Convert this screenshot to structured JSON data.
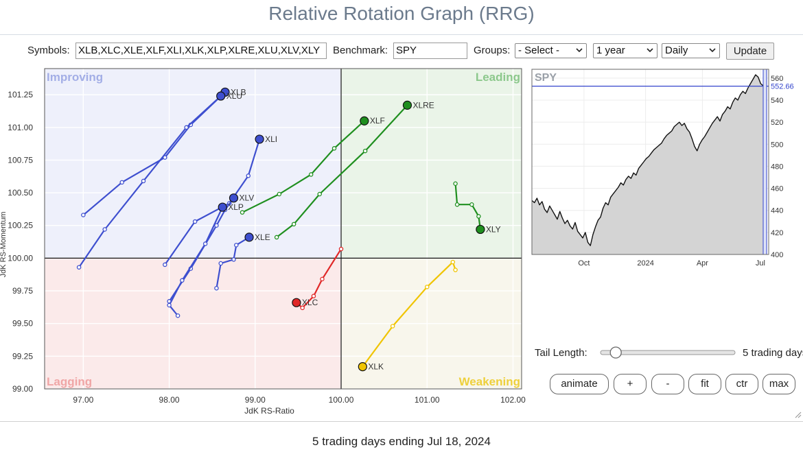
{
  "title": "Relative Rotation Graph (RRG)",
  "controls": {
    "symbols_label": "Symbols:",
    "symbols_value": "XLB,XLC,XLE,XLF,XLI,XLK,XLP,XLRE,XLU,XLV,XLY",
    "benchmark_label": "Benchmark:",
    "benchmark_value": "SPY",
    "groups_label": "Groups:",
    "groups_value": "- Select -",
    "period_value": "1 year",
    "frequency_value": "Daily",
    "update_label": "Update"
  },
  "tail": {
    "label": "Tail Length:",
    "value_text": "5 trading days",
    "slider_value": 5,
    "slider_max": 60
  },
  "buttons": {
    "animate": "animate",
    "plus": "+",
    "minus": "-",
    "fit": "fit",
    "ctr": "ctr",
    "max": "max"
  },
  "footer": "5 trading days ending Jul 18, 2024",
  "chart_data": [
    {
      "type": "scatter",
      "xlabel": "JdK RS-Ratio",
      "ylabel": "JdK RS-Momentum",
      "xlim": [
        96.55,
        102.1
      ],
      "ylim": [
        99.0,
        101.45
      ],
      "x_ticks": [
        "97.00",
        "98.00",
        "99.00",
        "100.00",
        "101.00",
        "102.00"
      ],
      "x_tick_values": [
        97,
        98,
        99,
        100,
        101,
        102
      ],
      "y_ticks": [
        "99.00",
        "99.25",
        "99.50",
        "99.75",
        "100.00",
        "100.25",
        "100.50",
        "100.75",
        "101.00",
        "101.25"
      ],
      "y_tick_values": [
        99,
        99.25,
        99.5,
        99.75,
        100,
        100.25,
        100.5,
        100.75,
        101,
        101.25
      ],
      "quadrants": [
        {
          "name": "Improving",
          "color": "#eef0fb",
          "label_color": "#a3aee6",
          "position": "top-left"
        },
        {
          "name": "Leading",
          "color": "#eaf4e8",
          "label_color": "#8cc88c",
          "position": "top-right"
        },
        {
          "name": "Lagging",
          "color": "#fbeaea",
          "label_color": "#f0a6a6",
          "position": "bottom-left"
        },
        {
          "name": "Weakening",
          "color": "#f8f6ec",
          "label_color": "#eed03c",
          "position": "bottom-right"
        }
      ],
      "series": [
        {
          "name": "XLB",
          "color": "#3e4fcf",
          "points": [
            [
              97.0,
              100.33
            ],
            [
              97.45,
              100.58
            ],
            [
              97.95,
              100.77
            ],
            [
              98.25,
              101.02
            ],
            [
              98.65,
              101.27
            ]
          ]
        },
        {
          "name": "XLU",
          "color": "#3e4fcf",
          "points": [
            [
              96.95,
              99.93
            ],
            [
              97.25,
              100.22
            ],
            [
              97.7,
              100.59
            ],
            [
              98.2,
              101.0
            ],
            [
              98.6,
              101.24
            ]
          ]
        },
        {
          "name": "XLI",
          "color": "#3e4fcf",
          "points": [
            [
              97.95,
              99.95
            ],
            [
              98.3,
              100.28
            ],
            [
              98.7,
              100.42
            ],
            [
              98.92,
              100.63
            ],
            [
              99.05,
              100.91
            ]
          ]
        },
        {
          "name": "XLV",
          "color": "#3e4fcf",
          "points": [
            [
              98.0,
              99.67
            ],
            [
              98.25,
              99.92
            ],
            [
              98.55,
              100.25
            ],
            [
              98.65,
              100.37
            ],
            [
              98.75,
              100.46
            ]
          ]
        },
        {
          "name": "XLP",
          "color": "#3e4fcf",
          "points": [
            [
              98.1,
              99.56
            ],
            [
              98.0,
              99.64
            ],
            [
              98.15,
              99.83
            ],
            [
              98.42,
              100.11
            ],
            [
              98.62,
              100.39
            ]
          ]
        },
        {
          "name": "XLE",
          "color": "#3e4fcf",
          "points": [
            [
              98.55,
              99.77
            ],
            [
              98.6,
              99.96
            ],
            [
              98.75,
              99.99
            ],
            [
              98.78,
              100.1
            ],
            [
              98.93,
              100.16
            ]
          ]
        },
        {
          "name": "XLRE",
          "color": "#1f8f1f",
          "points": [
            [
              99.25,
              100.16
            ],
            [
              99.45,
              100.26
            ],
            [
              99.75,
              100.49
            ],
            [
              100.28,
              100.82
            ],
            [
              100.77,
              101.17
            ]
          ]
        },
        {
          "name": "XLF",
          "color": "#1f8f1f",
          "points": [
            [
              98.85,
              100.35
            ],
            [
              99.28,
              100.49
            ],
            [
              99.65,
              100.64
            ],
            [
              99.92,
              100.84
            ],
            [
              100.27,
              101.05
            ]
          ]
        },
        {
          "name": "XLY",
          "color": "#1f8f1f",
          "points": [
            [
              101.33,
              100.57
            ],
            [
              101.35,
              100.41
            ],
            [
              101.52,
              100.41
            ],
            [
              101.6,
              100.32
            ],
            [
              101.62,
              100.22
            ]
          ]
        },
        {
          "name": "XLC",
          "color": "#e02828",
          "points": [
            [
              100.0,
              100.07
            ],
            [
              99.78,
              99.84
            ],
            [
              99.68,
              99.71
            ],
            [
              99.55,
              99.62
            ],
            [
              99.48,
              99.66
            ]
          ]
        },
        {
          "name": "XLK",
          "color": "#f0c400",
          "points": [
            [
              101.33,
              99.91
            ],
            [
              101.3,
              99.97
            ],
            [
              101.0,
              99.78
            ],
            [
              100.6,
              99.48
            ],
            [
              100.25,
              99.17
            ]
          ]
        }
      ]
    },
    {
      "type": "line",
      "name": "SPY",
      "current_value": 552.66,
      "current_label": "552.66",
      "ylim": [
        400,
        568
      ],
      "y_ticks": [
        "560",
        "540",
        "520",
        "500",
        "480",
        "460",
        "440",
        "420",
        "400"
      ],
      "y_tick_values": [
        560,
        540,
        520,
        500,
        480,
        460,
        440,
        420,
        400
      ],
      "x_ticks": [
        "Oct",
        "2024",
        "Apr",
        "Jul"
      ],
      "x_tick_positions": [
        0.22,
        0.48,
        0.72,
        0.965
      ],
      "values": [
        449,
        447,
        451,
        445,
        448,
        441,
        438,
        444,
        440,
        436,
        432,
        439,
        433,
        428,
        431,
        426,
        423,
        429,
        421,
        418,
        415,
        420,
        411,
        408,
        418,
        425,
        431,
        434,
        442,
        447,
        445,
        452,
        455,
        458,
        461,
        465,
        463,
        468,
        471,
        469,
        474,
        472,
        478,
        481,
        484,
        487,
        489,
        492,
        495,
        497,
        499,
        501,
        505,
        508,
        510,
        512,
        516,
        518,
        520,
        517,
        519,
        514,
        511,
        505,
        498,
        494,
        500,
        504,
        507,
        511,
        515,
        519,
        522,
        525,
        521,
        527,
        530,
        534,
        532,
        538,
        542,
        540,
        545,
        548,
        546,
        551,
        555,
        559,
        563,
        561,
        555,
        553
      ]
    }
  ]
}
